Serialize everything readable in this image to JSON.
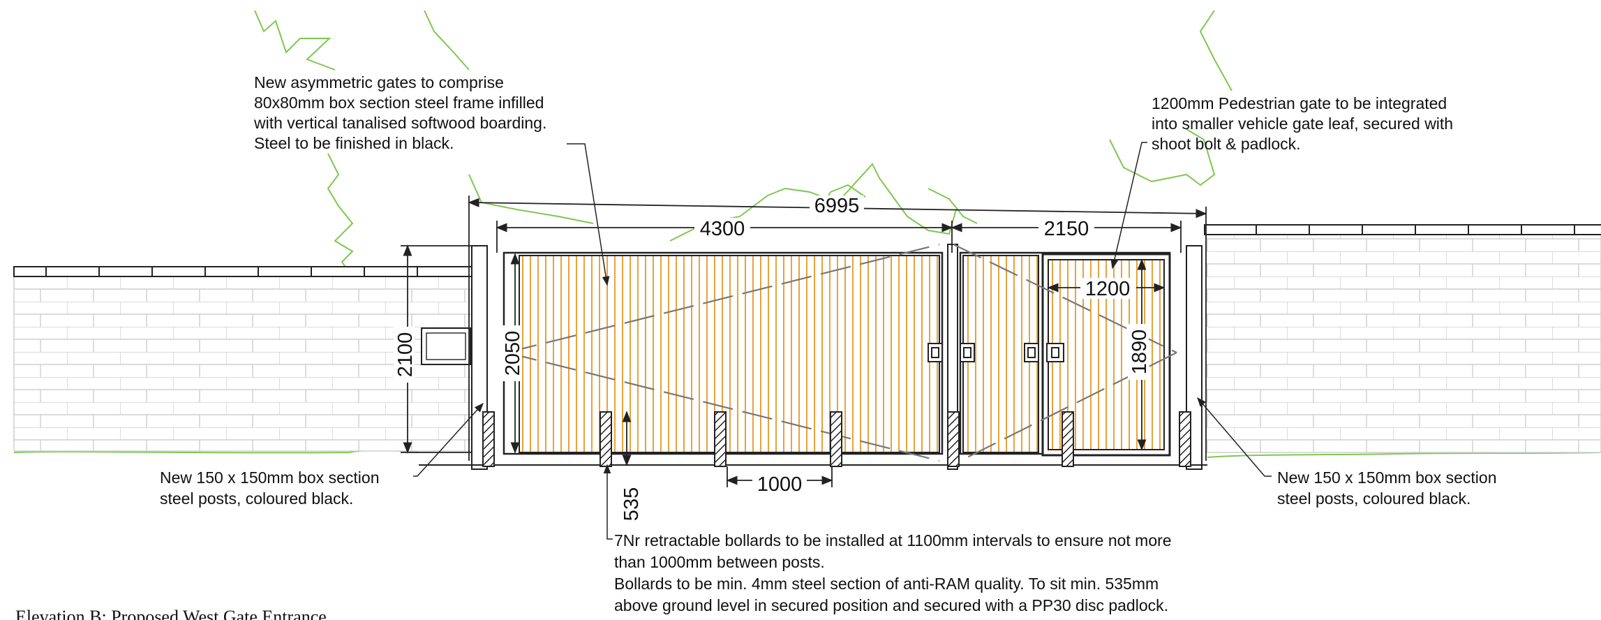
{
  "drawing": {
    "title": "Elevation B: Proposed West Gate Entrance",
    "notes": {
      "gates": [
        "New asymmetric gates to comprise",
        "80x80mm box section steel frame infilled",
        "with vertical tanalised softwood boarding.",
        "Steel to be finished in black."
      ],
      "pedestrian_gate": [
        "1200mm Pedestrian gate to be integrated",
        "into smaller vehicle gate leaf, secured with",
        "shoot bolt & padlock."
      ],
      "post_left": [
        "New 150 x 150mm box section",
        "steel posts, coloured black."
      ],
      "post_right": [
        "New 150 x 150mm box section",
        "steel posts, coloured black."
      ],
      "bollards": [
        "7Nr retractable bollards to be installed at 1100mm intervals to ensure not more",
        "than 1000mm between posts.",
        "Bollards to be min. 4mm steel section of anti-RAM quality. To sit min. 535mm",
        "above ground level in secured position and secured with a PP30 disc padlock."
      ]
    },
    "dimensions": {
      "overall": "6995",
      "large_leaf": "4300",
      "small_leaf": "2150",
      "pedestrian_width": "1200",
      "pedestrian_height": "1890",
      "gate_height": "2050",
      "wall_height": "2100",
      "bollard_spacing": "1000",
      "bollard_height": "535"
    },
    "colors": {
      "line": "#222222",
      "boarding": "#e8a23a",
      "vegetation": "#7ec850",
      "brick": "#c8c8c8",
      "hidden_line": "#777777"
    }
  }
}
